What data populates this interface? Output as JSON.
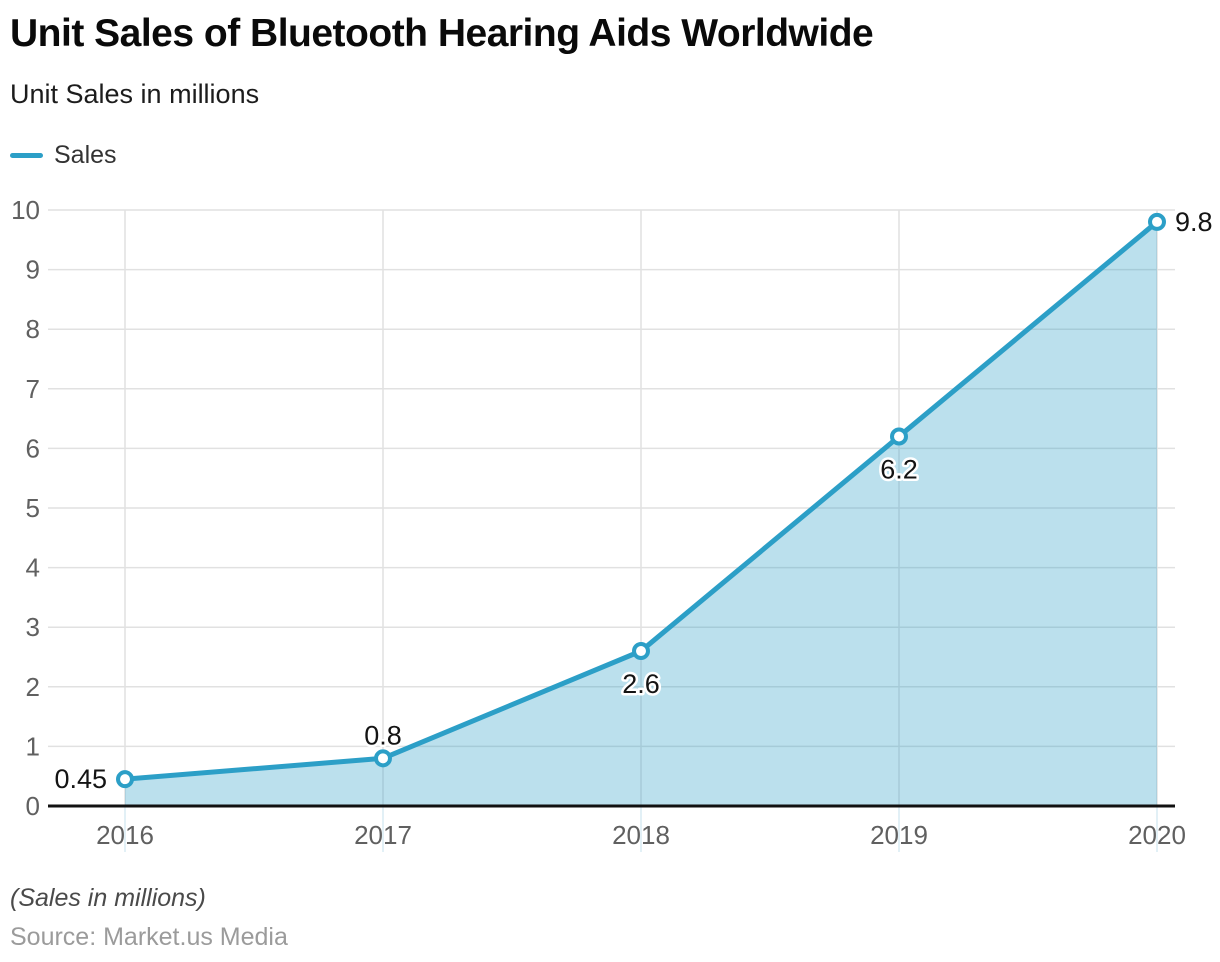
{
  "header": {
    "title": "Unit Sales of Bluetooth Hearing Aids Worldwide",
    "subtitle": "Unit Sales in millions"
  },
  "legend": {
    "items": [
      {
        "label": "Sales",
        "color": "#2C9FC7"
      }
    ]
  },
  "chart_data": {
    "type": "area",
    "title": "Unit Sales of Bluetooth Hearing Aids Worldwide",
    "subtitle": "Unit Sales in millions",
    "categories": [
      "2016",
      "2017",
      "2018",
      "2019",
      "2020"
    ],
    "series": [
      {
        "name": "Sales",
        "values": [
          0.45,
          0.8,
          2.6,
          6.2,
          9.8
        ],
        "color": "#2C9FC7",
        "fill_opacity": 0.32,
        "marker": "open-circle"
      }
    ],
    "point_labels": [
      "0.45",
      "0.8",
      "2.6",
      "6.2",
      "9.8"
    ],
    "label_placements": [
      "left",
      "top",
      "bottom",
      "bottom",
      "right"
    ],
    "xlabel": "",
    "ylabel": "Unit Sales in millions",
    "ylim": [
      0,
      10
    ],
    "ytick_interval": 1,
    "yticks": [
      0,
      1,
      2,
      3,
      4,
      5,
      6,
      7,
      8,
      9,
      10
    ],
    "grid": true,
    "legend_position": "top-left"
  },
  "footer": {
    "note": "(Sales in millions)",
    "source": "Source: Market.us Media"
  },
  "colors": {
    "accent": "#2C9FC7",
    "gridline": "#E1E1E1",
    "axis_line": "#111111",
    "tick_text": "#606060",
    "data_label": "#141414",
    "label_halo": "#FFFFFF",
    "title_text": "#0A0A0A",
    "subtitle_text": "#1C1C1C",
    "legend_text": "#333333",
    "note_text": "#4A4A4A",
    "source_text": "#9B9B9B",
    "below_axis_tick": "#D8EAF2"
  }
}
